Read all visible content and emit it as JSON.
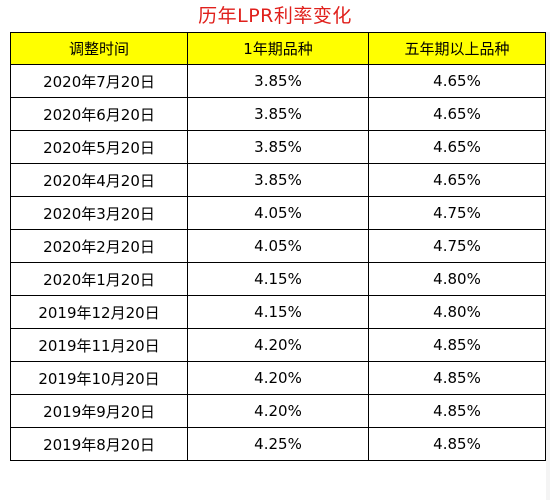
{
  "title": "历年LPR利率变化",
  "headers": [
    "调整时间",
    "1年期品种",
    "五年期以上品种"
  ],
  "rows": [
    [
      "2020年7月20日",
      "3.85%",
      "4.65%"
    ],
    [
      "2020年6月20日",
      "3.85%",
      "4.65%"
    ],
    [
      "2020年5月20日",
      "3.85%",
      "4.65%"
    ],
    [
      "2020年4月20日",
      "3.85%",
      "4.65%"
    ],
    [
      "2020年3月20日",
      "4.05%",
      "4.75%"
    ],
    [
      "2020年2月20日",
      "4.05%",
      "4.75%"
    ],
    [
      "2020年1月20日",
      "4.15%",
      "4.80%"
    ],
    [
      "2019年12月20日",
      "4.15%",
      "4.80%"
    ],
    [
      "2019年11月20日",
      "4.20%",
      "4.85%"
    ],
    [
      "2019年10月20日",
      "4.20%",
      "4.85%"
    ],
    [
      "2019年9月20日",
      "4.20%",
      "4.85%"
    ],
    [
      "2019年8月20日",
      "4.25%",
      "4.85%"
    ]
  ],
  "colors": {
    "title": "#e0201c",
    "header_bg": "#ffff00",
    "border": "#000000"
  }
}
